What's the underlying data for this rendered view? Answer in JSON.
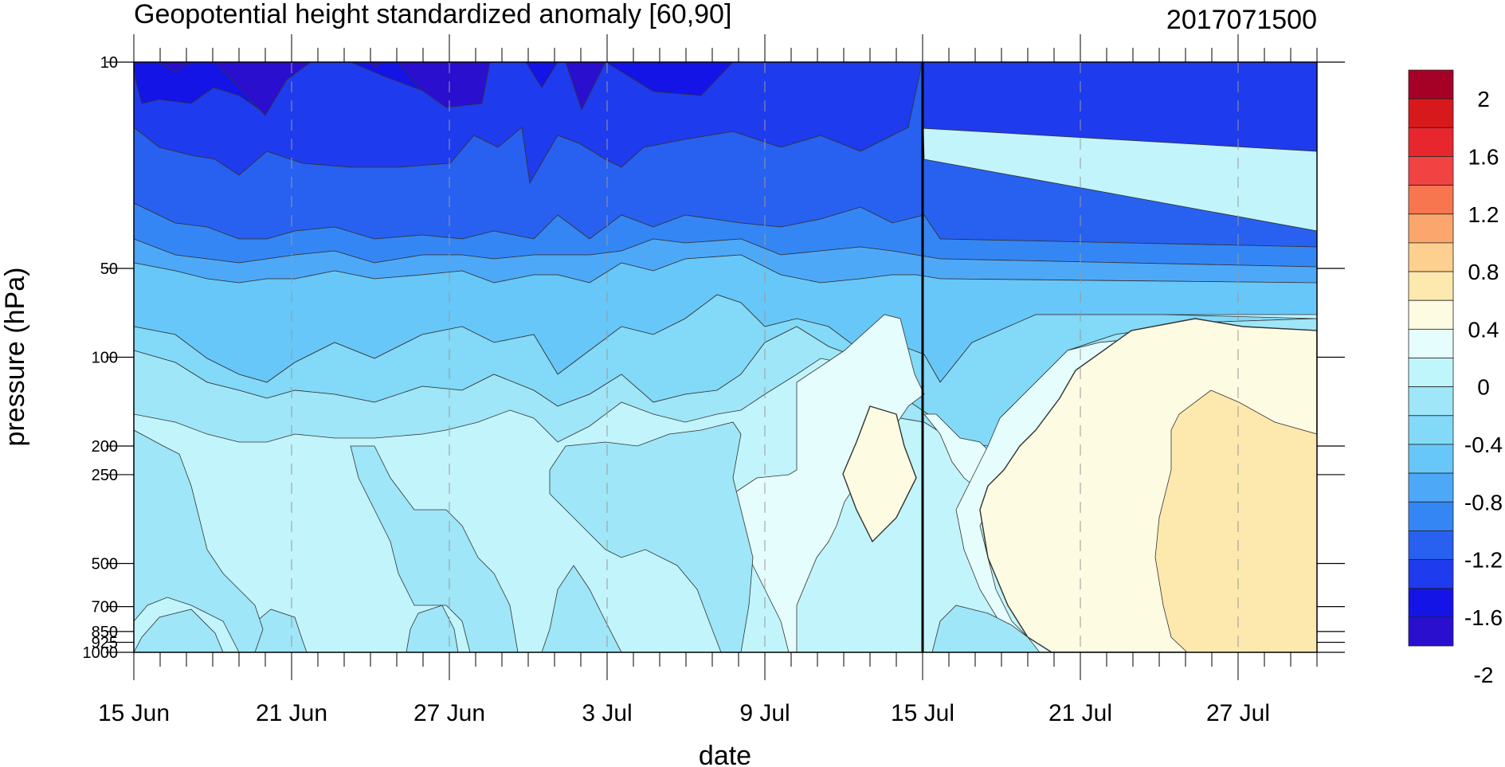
{
  "chart_data": {
    "type": "heatmap",
    "title": "Geopotential height standardized anomaly [60,90]",
    "date_label": "2017071500",
    "xlabel": "date",
    "ylabel": "pressure (hPa)",
    "x_ticks": [
      "15 Jun",
      "21 Jun",
      "27 Jun",
      "3 Jul",
      "9 Jul",
      "15 Jul",
      "21 Jul",
      "27 Jul"
    ],
    "y_ticks": [
      "10",
      "50",
      "100",
      "200",
      "250",
      "500",
      "700",
      "850",
      "925",
      "1000"
    ],
    "y_tick_values": [
      10,
      50,
      100,
      200,
      250,
      500,
      700,
      850,
      925,
      1000
    ],
    "y_scale": "log",
    "y_reversed": true,
    "xlim": [
      "2017-06-15",
      "2017-07-30"
    ],
    "ylim": [
      10,
      1000
    ],
    "current_date_line": "2017-07-15",
    "colorbar": {
      "labels": [
        "2",
        "1.6",
        "1.2",
        "0.8",
        "0.4",
        "0",
        "-0.4",
        "-0.8",
        "-1.2",
        "-1.6",
        "-2"
      ],
      "colors": [
        "#a50026",
        "#d7191c",
        "#e8262d",
        "#f24343",
        "#f7754f",
        "#fba66c",
        "#fdd08f",
        "#fde8ae",
        "#fefbe3",
        "#e6fdfd",
        "#bff6fb",
        "#9ee6f8",
        "#82d9f8",
        "#67c7f8",
        "#4ea8f8",
        "#3586f5",
        "#2860f0",
        "#1e3bed",
        "#1414e6",
        "#2a0fcf"
      ]
    }
  }
}
